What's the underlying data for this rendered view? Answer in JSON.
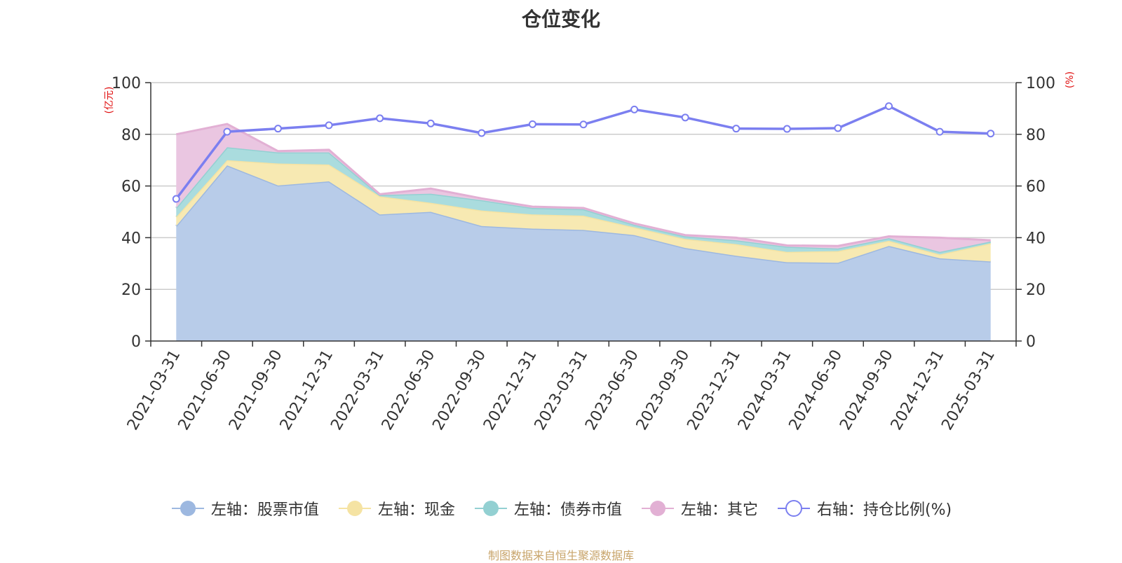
{
  "chart_data": {
    "type": "area",
    "title": "仓位变化",
    "left_unit": "(亿元)",
    "right_unit": "(%)",
    "categories": [
      "2021-03-31",
      "2021-06-30",
      "2021-09-30",
      "2021-12-31",
      "2022-03-31",
      "2022-06-30",
      "2022-09-30",
      "2022-12-31",
      "2023-03-31",
      "2023-06-30",
      "2023-09-30",
      "2023-12-31",
      "2024-03-31",
      "2024-06-30",
      "2024-09-30",
      "2024-12-31",
      "2025-03-31"
    ],
    "left_ylim": [
      0,
      100
    ],
    "right_ylim": [
      0,
      100
    ],
    "left_ticks": [
      0,
      20,
      40,
      60,
      80,
      100
    ],
    "right_ticks": [
      0,
      20,
      40,
      60,
      80,
      100
    ],
    "stacked_series": [
      {
        "name": "左轴：股票市值",
        "axis": "left",
        "color": "#9db8e0",
        "fill": "#b8cce9",
        "values": [
          44.5,
          68,
          60.2,
          61.8,
          49,
          50,
          44.5,
          43.5,
          43,
          41,
          36,
          33,
          30.5,
          30.3,
          36.8,
          32,
          30.8
        ]
      },
      {
        "name": "左轴：现金",
        "axis": "left",
        "color": "#f5e3a3",
        "fill": "#f7e9b2",
        "values": [
          3.5,
          2,
          8.5,
          6.5,
          7,
          3.5,
          6,
          5.5,
          5.5,
          3,
          3.5,
          4.5,
          4,
          4.5,
          2,
          1.5,
          7
        ]
      },
      {
        "name": "左轴：债券市值",
        "axis": "left",
        "color": "#93d0d2",
        "fill": "#aadcde",
        "values": [
          3.5,
          5,
          4.3,
          4.7,
          0.5,
          3.5,
          4,
          2.5,
          2.5,
          1,
          1,
          1.5,
          2,
          1,
          1,
          1,
          0.7
        ]
      },
      {
        "name": "左轴：其它",
        "axis": "left",
        "color": "#e2b0d4",
        "fill": "#eac6e1",
        "values": [
          28.5,
          9,
          0.5,
          1,
          0.3,
          2,
          0.7,
          0.5,
          0.5,
          0.5,
          0.5,
          1,
          0.5,
          1,
          0.7,
          5.5,
          0.5
        ]
      }
    ],
    "line_series": {
      "name": "右轴：持仓比例(%)",
      "axis": "right",
      "color": "#7b7ff0",
      "values": [
        55,
        81,
        82.2,
        83.5,
        86.2,
        84.2,
        80.5,
        83.9,
        83.8,
        89.6,
        86.5,
        82.2,
        82.1,
        82.4,
        90.9,
        81,
        80.3
      ]
    },
    "grid": true,
    "legend_position": "bottom",
    "source": "制图数据来自恒生聚源数据库"
  },
  "legend": [
    {
      "label": "左轴：股票市值",
      "color": "#9db8e0",
      "kind": "filled-circle"
    },
    {
      "label": "左轴：现金",
      "color": "#f5e3a3",
      "kind": "filled-circle"
    },
    {
      "label": "左轴：债券市值",
      "color": "#93d0d2",
      "kind": "filled-circle"
    },
    {
      "label": "左轴：其它",
      "color": "#e2b0d4",
      "kind": "filled-circle"
    },
    {
      "label": "右轴：持仓比例(%)",
      "color": "#7b7ff0",
      "kind": "hollow-circle"
    }
  ]
}
